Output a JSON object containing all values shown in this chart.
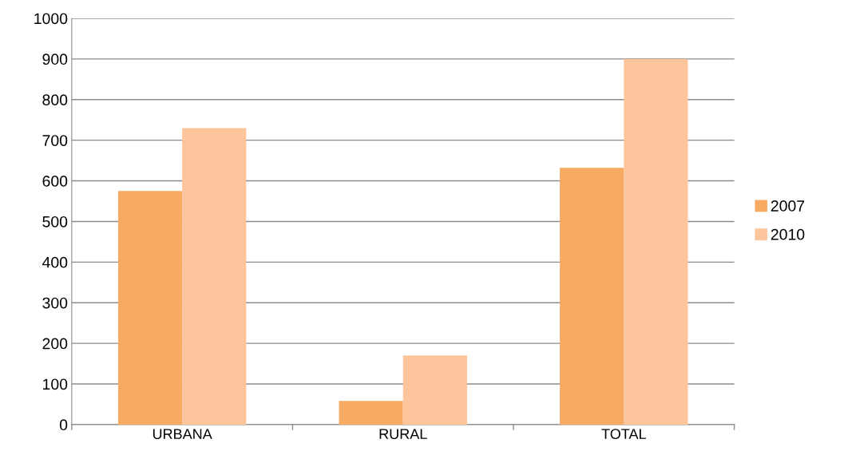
{
  "chart_data": {
    "type": "bar",
    "categories": [
      "URBANA",
      "RURAL",
      "TOTAL"
    ],
    "series": [
      {
        "name": "2007",
        "color": "#f6aa62",
        "values": [
          575,
          58,
          632
        ]
      },
      {
        "name": "2010",
        "color": "#fdc59c",
        "values": [
          730,
          170,
          900
        ]
      }
    ],
    "ylim": [
      0,
      1000
    ],
    "yticks": [
      0,
      100,
      200,
      300,
      400,
      500,
      600,
      700,
      800,
      900,
      1000
    ],
    "grid": "y",
    "legend": "right"
  }
}
